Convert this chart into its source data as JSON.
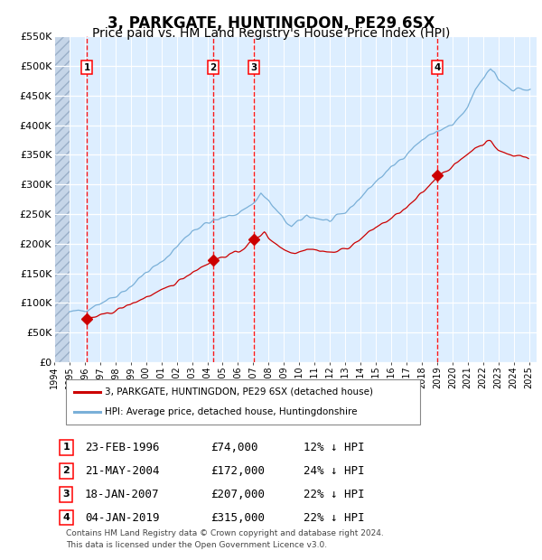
{
  "title": "3, PARKGATE, HUNTINGDON, PE29 6SX",
  "subtitle": "Price paid vs. HM Land Registry's House Price Index (HPI)",
  "title_fontsize": 12,
  "subtitle_fontsize": 10,
  "bg_color": "#ddeeff",
  "ylim": [
    0,
    550000
  ],
  "yticks": [
    0,
    50000,
    100000,
    150000,
    200000,
    250000,
    300000,
    350000,
    400000,
    450000,
    500000,
    550000
  ],
  "xmin": 1994.0,
  "xmax": 2025.5,
  "xticks": [
    1994,
    1995,
    1996,
    1997,
    1998,
    1999,
    2000,
    2001,
    2002,
    2003,
    2004,
    2005,
    2006,
    2007,
    2008,
    2009,
    2010,
    2011,
    2012,
    2013,
    2014,
    2015,
    2016,
    2017,
    2018,
    2019,
    2020,
    2021,
    2022,
    2023,
    2024,
    2025
  ],
  "sale_dates": [
    1996.14,
    2004.39,
    2007.05,
    2019.01
  ],
  "sale_prices": [
    74000,
    172000,
    207000,
    315000
  ],
  "sale_labels": [
    "1",
    "2",
    "3",
    "4"
  ],
  "sale_color": "#cc0000",
  "hpi_color": "#7ab0d8",
  "transactions": [
    {
      "num": "1",
      "date": "23-FEB-1996",
      "price": "£74,000",
      "hpi": "12% ↓ HPI"
    },
    {
      "num": "2",
      "date": "21-MAY-2004",
      "price": "£172,000",
      "hpi": "24% ↓ HPI"
    },
    {
      "num": "3",
      "date": "18-JAN-2007",
      "price": "£207,000",
      "hpi": "22% ↓ HPI"
    },
    {
      "num": "4",
      "date": "04-JAN-2019",
      "price": "£315,000",
      "hpi": "22% ↓ HPI"
    }
  ],
  "legend_label_red": "3, PARKGATE, HUNTINGDON, PE29 6SX (detached house)",
  "legend_label_blue": "HPI: Average price, detached house, Huntingdonshire",
  "footer": "Contains HM Land Registry data © Crown copyright and database right 2024.\nThis data is licensed under the Open Government Licence v3.0."
}
